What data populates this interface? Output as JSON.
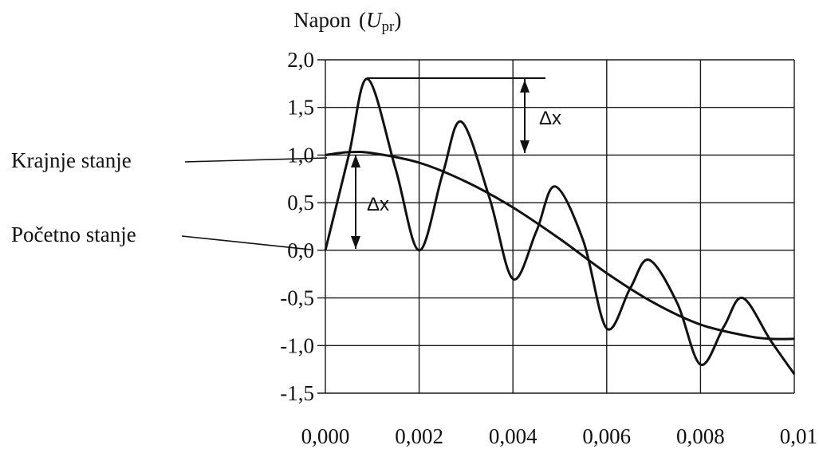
{
  "chart_data": {
    "type": "line",
    "title": "Napon",
    "title_symbol": "U",
    "title_subscript": "pr",
    "xlim": [
      0,
      0.01
    ],
    "ylim": [
      -1.5,
      2.0
    ],
    "x_ticks": [
      0,
      0.002,
      0.004,
      0.006,
      0.008,
      0.01
    ],
    "x_tick_labels": [
      "0,000",
      "0,002",
      "0,004",
      "0,006",
      "0,008",
      "0,01"
    ],
    "y_ticks": [
      2.0,
      1.5,
      1.0,
      0.5,
      0.0,
      -0.5,
      -1.0,
      -1.5
    ],
    "y_tick_labels": [
      "2,0",
      "1,5",
      "1,0",
      "0,5",
      "0,0",
      "-0,5",
      "-1,0",
      "-1,5"
    ],
    "grid": true,
    "series": [
      {
        "x": [
          0,
          0.0005,
          0.0009,
          0.0015,
          0.002,
          0.0025,
          0.0029,
          0.0035,
          0.004,
          0.0045,
          0.0049,
          0.0055,
          0.006,
          0.0065,
          0.0069,
          0.0075,
          0.008,
          0.0085,
          0.0089,
          0.0095,
          0.01
        ],
        "y": [
          0,
          1.0,
          1.8,
          0.85,
          0,
          0.8,
          1.35,
          0.55,
          -0.3,
          0.2,
          0.67,
          0.1,
          -0.82,
          -0.4,
          -0.1,
          -0.55,
          -1.2,
          -0.8,
          -0.5,
          -0.95,
          -1.3
        ]
      },
      {
        "x": [
          0,
          0.0005,
          0.001,
          0.002,
          0.003,
          0.004,
          0.005,
          0.006,
          0.007,
          0.008,
          0.009,
          0.0095,
          0.01
        ],
        "y": [
          1.0,
          1.03,
          1.02,
          0.92,
          0.72,
          0.45,
          0.12,
          -0.24,
          -0.55,
          -0.78,
          -0.9,
          -0.93,
          -0.93
        ]
      }
    ],
    "annotations": {
      "krajnje": "Krajnje stanje",
      "pocetno": "Početno stanje",
      "delta": "Δx"
    }
  }
}
